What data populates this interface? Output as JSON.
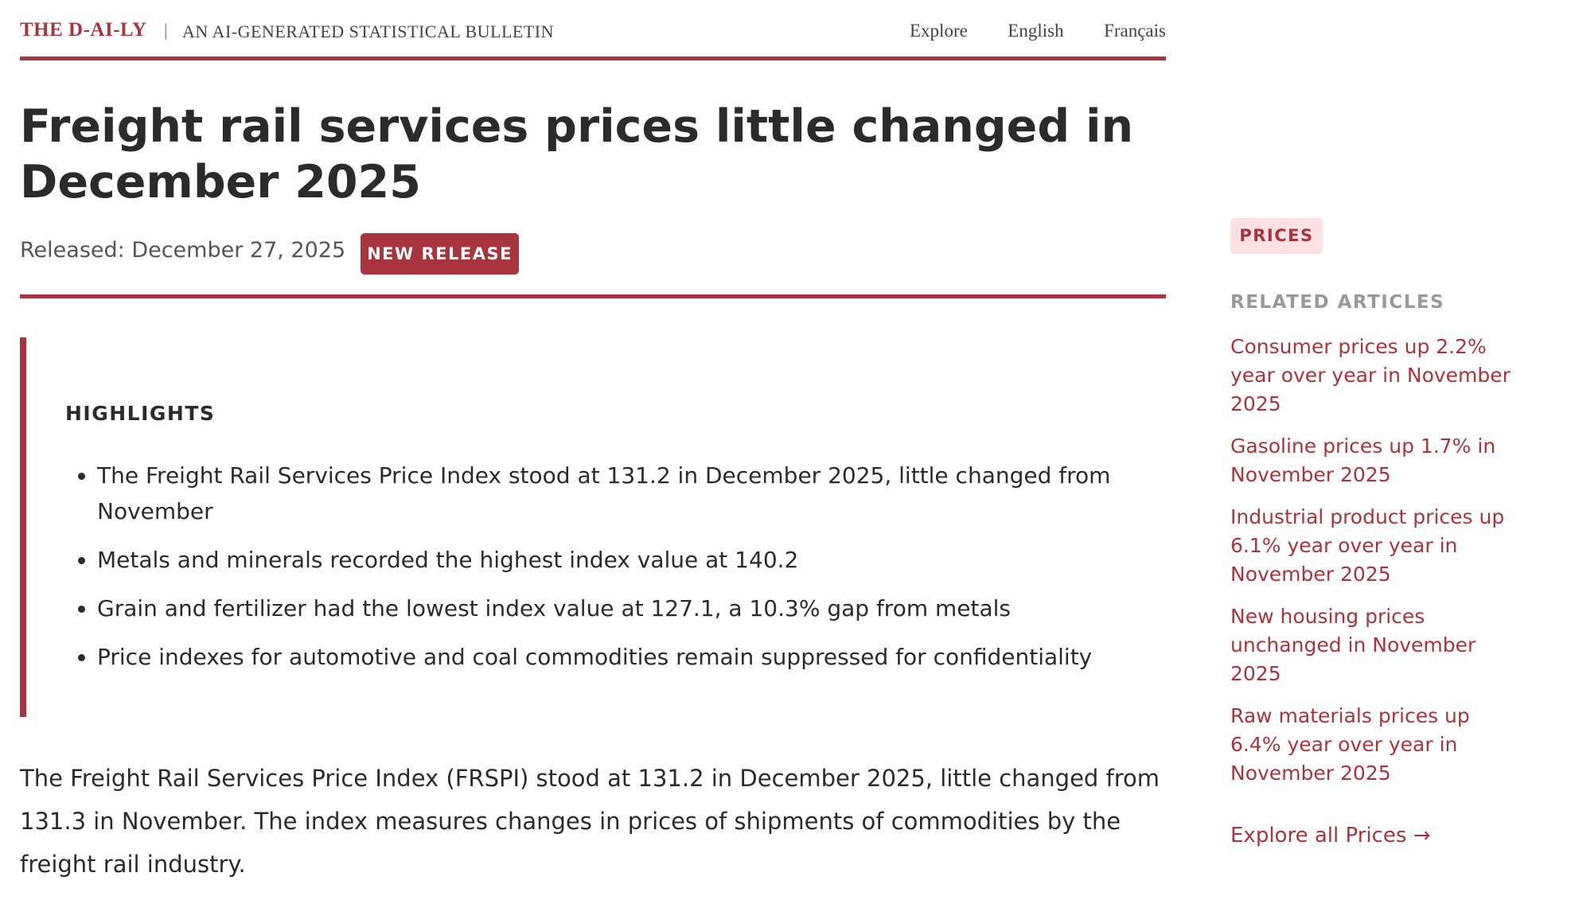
{
  "header": {
    "brand": "THE D-AI-LY",
    "tagline": "AN AI-GENERATED STATISTICAL BULLETIN",
    "nav": [
      "Explore",
      "English",
      "Français"
    ]
  },
  "article": {
    "title": "Freight rail services prices little changed in December 2025",
    "released": "Released: December 27, 2025",
    "badge": "NEW RELEASE",
    "highlights": {
      "heading": "HIGHLIGHTS",
      "items": [
        "The Freight Rail Services Price Index stood at 131.2 in December 2025, little changed from November",
        "Metals and minerals recorded the highest index value at 140.2",
        "Grain and fertilizer had the lowest index value at 127.1, a 10.3% gap from metals",
        "Price indexes for automotive and coal commodities remain suppressed for confidentiality"
      ]
    },
    "paragraph": "The Freight Rail Services Price Index (FRSPI) stood at 131.2 in December 2025, little changed from 131.3 in November. The index measures changes in prices of shipments of commodities by the freight rail industry."
  },
  "sidebar": {
    "tag": "PRICES",
    "heading": "RELATED ARTICLES",
    "links": [
      "Consumer prices up 2.2% year over year in November 2025",
      "Gasoline prices up 1.7% in November 2025",
      "Industrial product prices up 6.1% year over year in November 2025",
      "New housing prices unchanged in November 2025",
      "Raw materials prices up 6.4% year over year in November 2025"
    ],
    "explore": "Explore all Prices →"
  }
}
